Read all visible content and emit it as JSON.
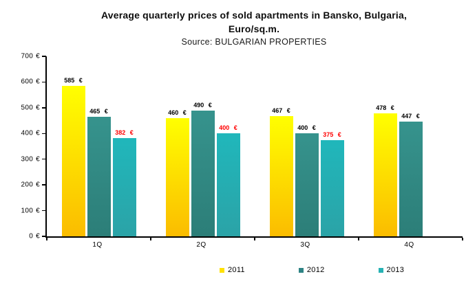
{
  "title": {
    "line1": "Average quarterly prices of sold apartments in Bansko, Bulgaria,",
    "line2": "Euro/sq.m.",
    "source": "Source: BULGARIAN PROPERTIES"
  },
  "chart_data": {
    "type": "bar",
    "title": "Average quarterly prices of sold apartments in Bansko, Bulgaria, Euro/sq.m.",
    "subtitle": "Source: BULGARIAN PROPERTIES",
    "categories": [
      "1Q",
      "2Q",
      "3Q",
      "4Q"
    ],
    "series": [
      {
        "name": "2011",
        "values": [
          585,
          460,
          467,
          478
        ],
        "labels": [
          "585 €",
          "460 €",
          "467 €",
          "478 €"
        ],
        "color_top": "#FFFF00",
        "color_bottom": "#FBBC00",
        "legend_color": "#FFE100",
        "label_color": "#000000"
      },
      {
        "name": "2012",
        "values": [
          465,
          490,
          400,
          447
        ],
        "labels": [
          "465 €",
          "490 €",
          "400 €",
          "447 €"
        ],
        "color_top": "#36938D",
        "color_bottom": "#2C7E78",
        "legend_color": "#2E8384",
        "label_color": "#000000"
      },
      {
        "name": "2013",
        "values": [
          382,
          400,
          375,
          null
        ],
        "labels": [
          "382 €",
          "400 €",
          "375 €",
          null
        ],
        "color_top": "#20B7BB",
        "color_bottom": "#2BA3A7",
        "legend_color": "#27B2B4",
        "label_color": "#FF0000"
      }
    ],
    "y_axis": {
      "min": 0,
      "max": 700,
      "tick_step": 100,
      "tick_labels": [
        "700 €",
        "600 €",
        "500 €",
        "400 €",
        "300 €",
        "200 €",
        "100 €",
        "0 €"
      ]
    },
    "legend": {
      "position": "bottom",
      "entries": [
        "2011",
        "2012",
        "2013"
      ]
    },
    "grid": false
  }
}
